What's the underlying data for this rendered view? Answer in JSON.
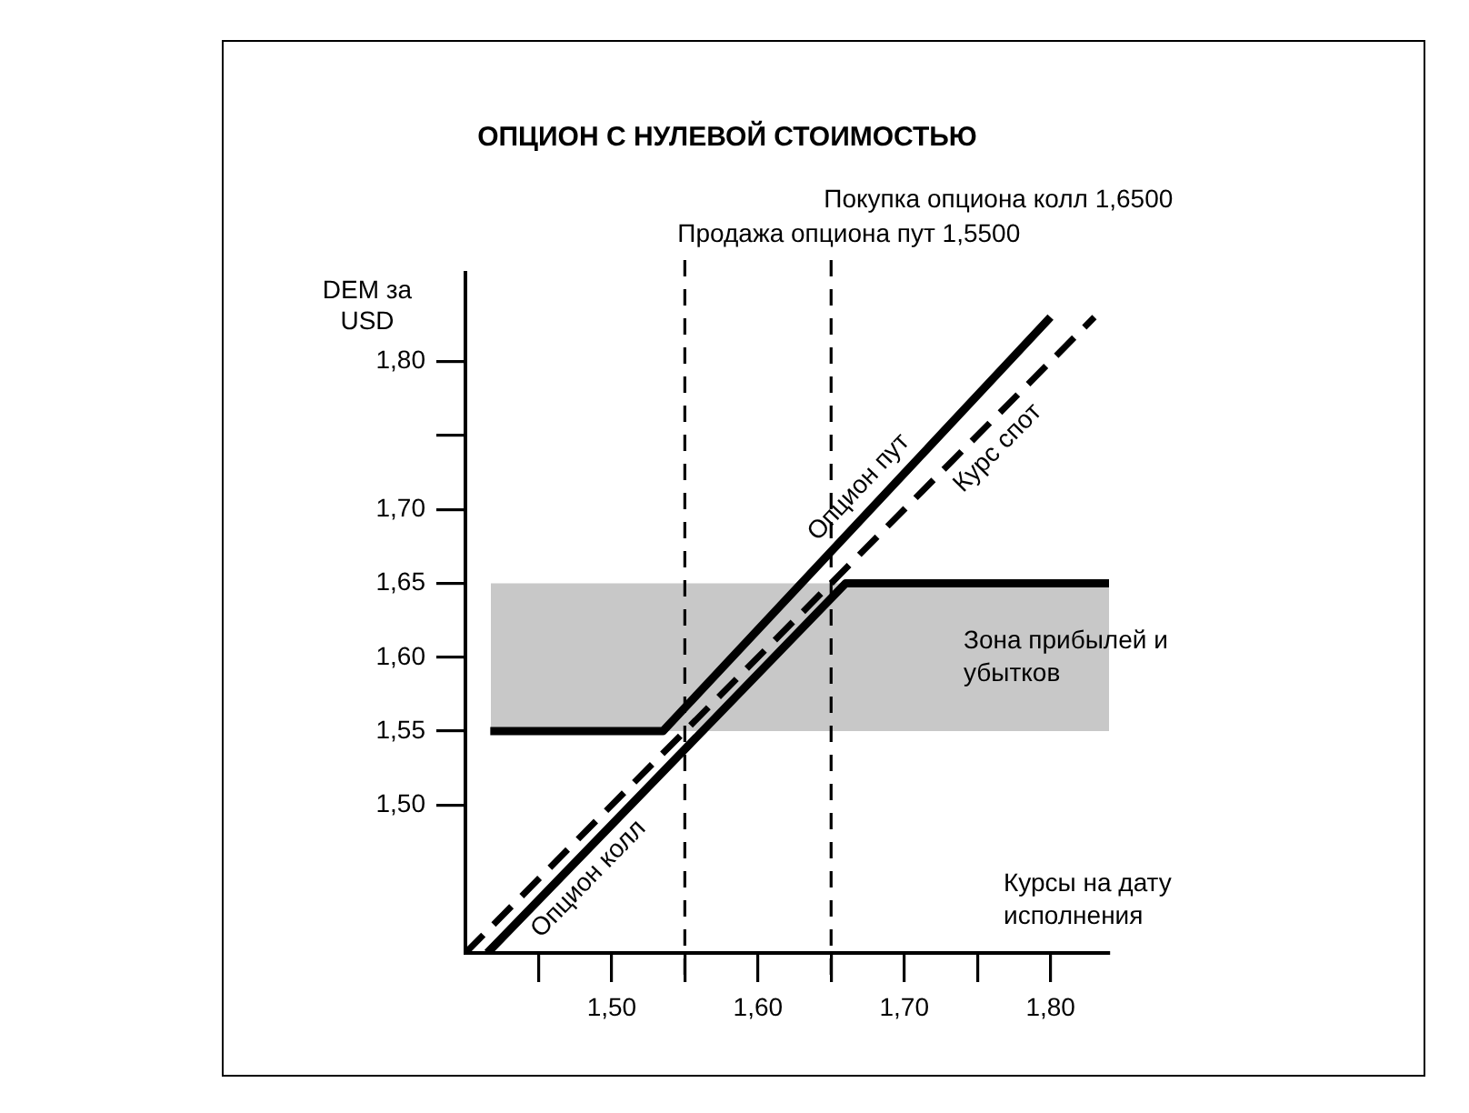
{
  "chart_data": {
    "type": "line",
    "title": "ОПЦИОН С НУЛЕВОЙ СТОИМОСТЬЮ",
    "xlabel": "Курсы на дату исполнения",
    "ylabel": "DEM за USD",
    "xlim": [
      1.4,
      1.84
    ],
    "ylim": [
      1.4,
      1.86
    ],
    "xticks": [
      {
        "value": 1.45,
        "label": null
      },
      {
        "value": 1.5,
        "label": "1,50"
      },
      {
        "value": 1.55,
        "label": null
      },
      {
        "value": 1.6,
        "label": "1,60"
      },
      {
        "value": 1.65,
        "label": null
      },
      {
        "value": 1.7,
        "label": "1,70"
      },
      {
        "value": 1.75,
        "label": null
      },
      {
        "value": 1.8,
        "label": "1,80"
      }
    ],
    "yticks": [
      {
        "value": 1.5,
        "label": "1,50"
      },
      {
        "value": 1.55,
        "label": "1,55"
      },
      {
        "value": 1.6,
        "label": "1,60"
      },
      {
        "value": 1.65,
        "label": "1,65"
      },
      {
        "value": 1.7,
        "label": "1,70"
      },
      {
        "value": 1.75,
        "label": null
      },
      {
        "value": 1.8,
        "label": "1,80"
      }
    ],
    "grid": false,
    "legend": false,
    "marker": "none",
    "series": [
      {
        "name": "Опцион пут",
        "color": "#000000",
        "line_style": "solid",
        "x": [
          1.417,
          1.535,
          1.8
        ],
        "values": [
          1.55,
          1.55,
          1.83
        ]
      },
      {
        "name": "Опцион колл",
        "color": "#000000",
        "line_style": "solid",
        "x": [
          1.415,
          1.66,
          1.84
        ],
        "values": [
          1.4,
          1.65,
          1.65
        ]
      },
      {
        "name": "Курс спот",
        "color": "#000000",
        "line_style": "dashed",
        "x": [
          1.4,
          1.83
        ],
        "values": [
          1.4,
          1.83
        ]
      }
    ],
    "ref_lines": [
      {
        "axis": "x",
        "value": 1.65,
        "label": "Покупка опциона колл 1,6500",
        "line_style": "dashed"
      },
      {
        "axis": "x",
        "value": 1.55,
        "label": "Продажа опциона пут 1,5500",
        "line_style": "dashed"
      }
    ],
    "bands": [
      {
        "axis": "y",
        "from": 1.55,
        "to": 1.65,
        "label": "Зона прибылей и убытков",
        "color": "#c8c8c8"
      }
    ]
  }
}
